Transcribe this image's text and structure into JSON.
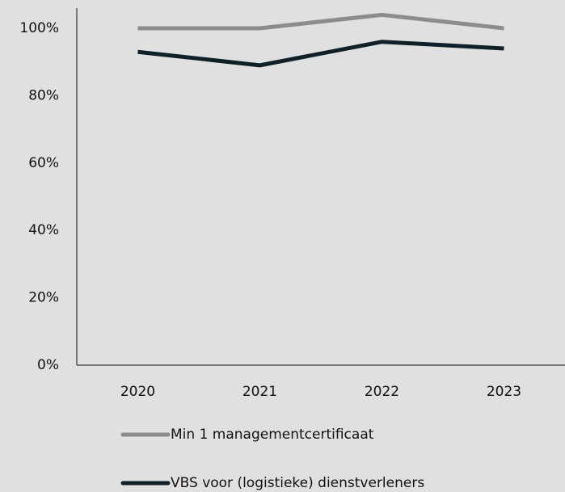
{
  "chart_data": {
    "type": "line",
    "categories": [
      "2020",
      "2021",
      "2022",
      "2023"
    ],
    "series": [
      {
        "name": "Min 1 managementcertificaat",
        "color": "#8c8c8c",
        "values": [
          100,
          100,
          104,
          100
        ]
      },
      {
        "name": "VBS voor (logistieke) dienstverleners",
        "color": "#0f2028",
        "values": [
          93,
          89,
          96,
          94
        ]
      }
    ],
    "ylim": [
      0,
      106
    ],
    "yticks": [
      {
        "value": 0,
        "label": "0%"
      },
      {
        "value": 20,
        "label": "20%"
      },
      {
        "value": 40,
        "label": "40%"
      },
      {
        "value": 60,
        "label": "60%"
      },
      {
        "value": 80,
        "label": "80%"
      },
      {
        "value": 100,
        "label": "100%"
      }
    ],
    "grid": false
  }
}
